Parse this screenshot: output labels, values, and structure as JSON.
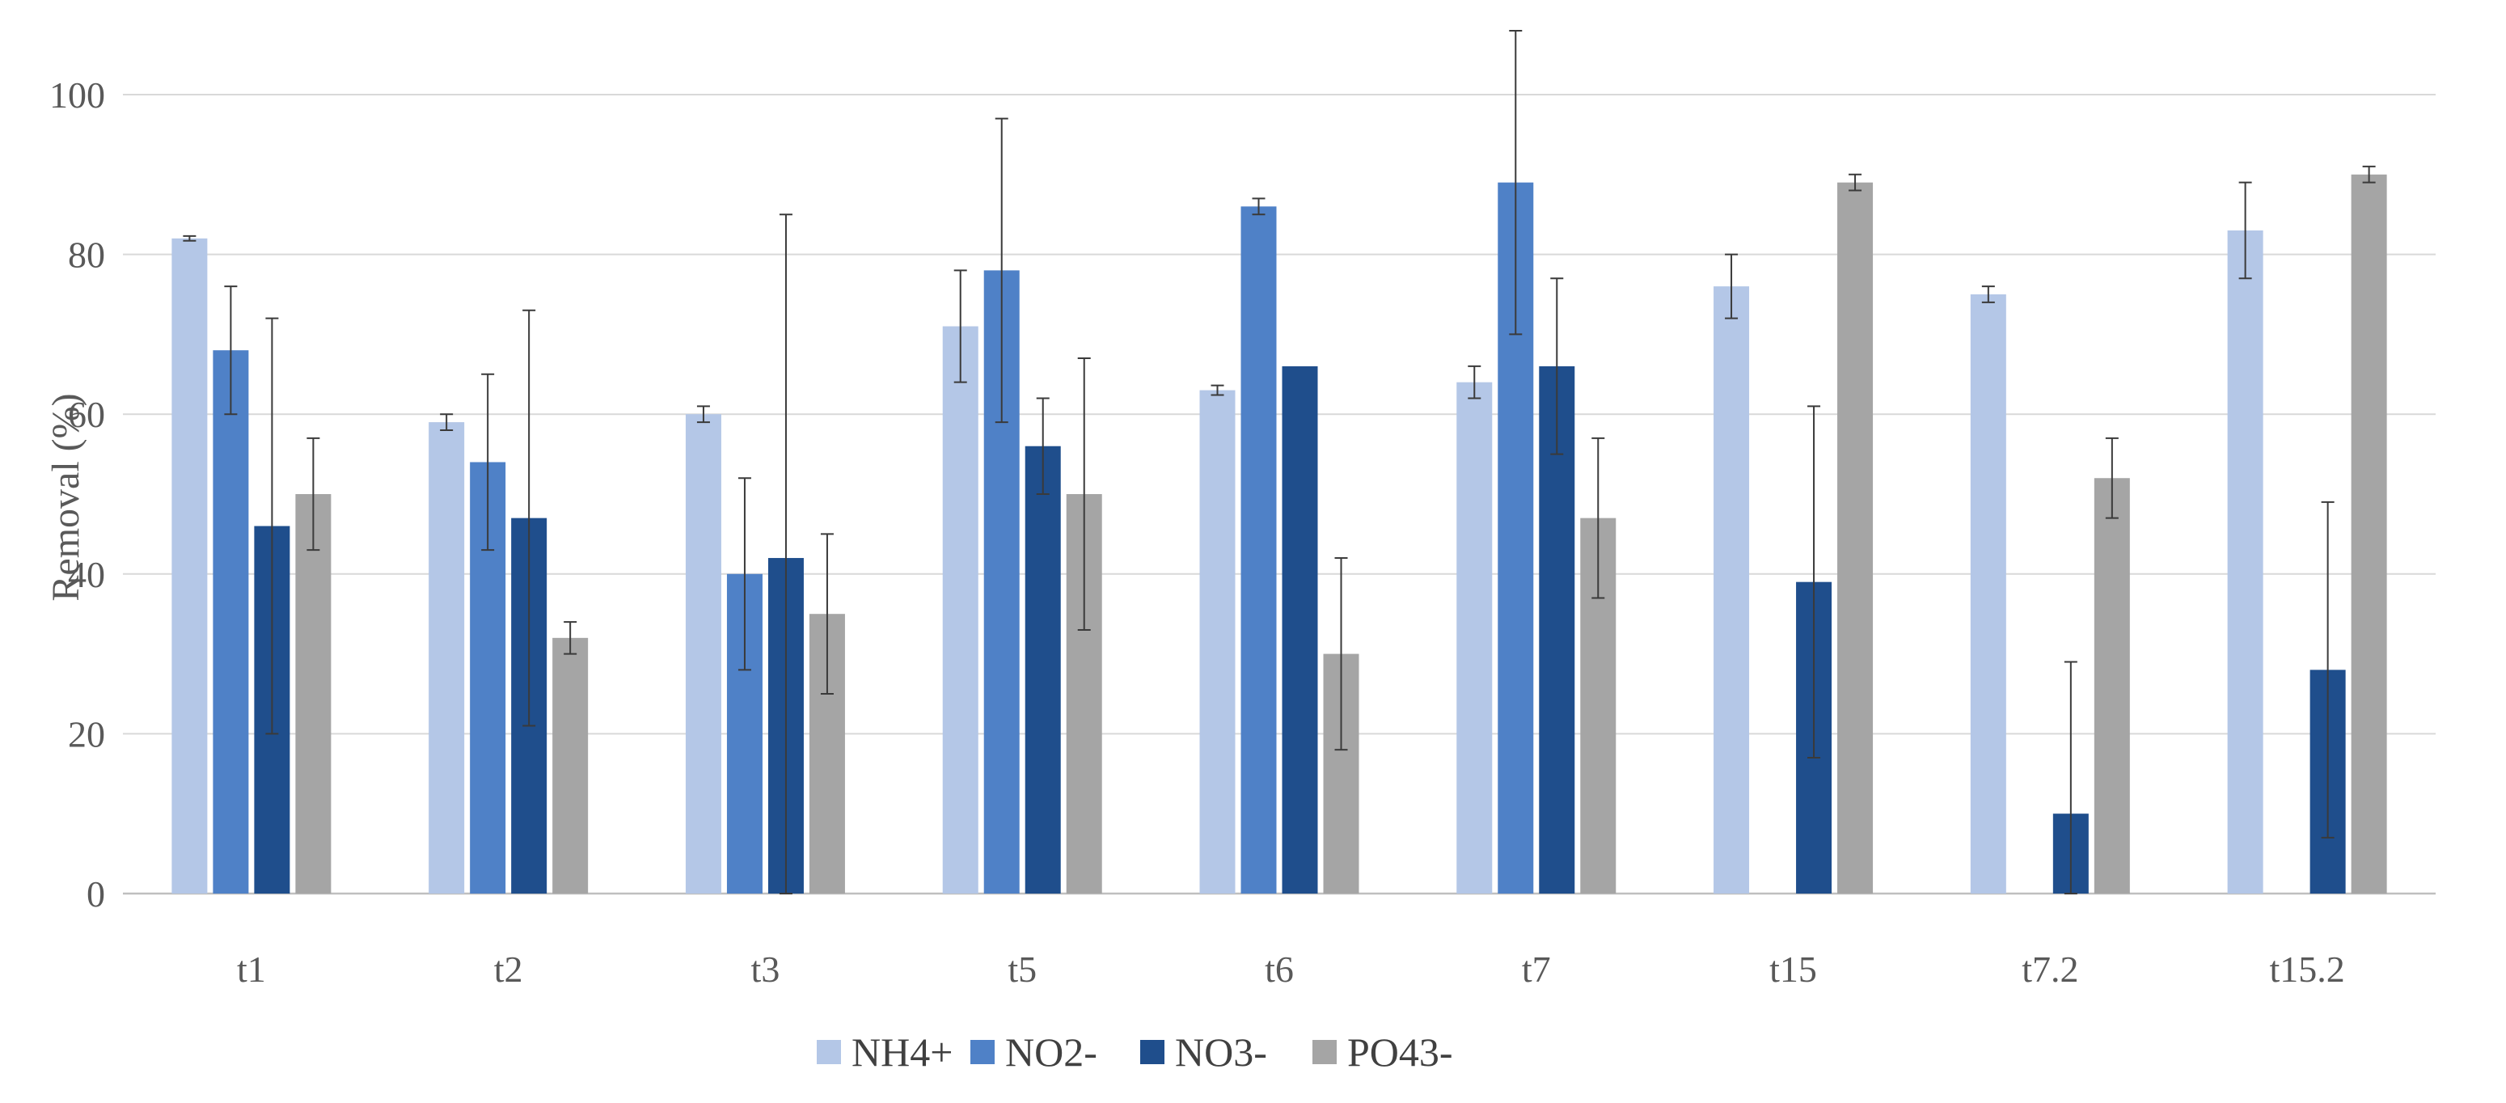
{
  "chart_data": {
    "type": "bar",
    "title": "",
    "xlabel": "",
    "ylabel": "Removal (%)",
    "ylim": [
      0,
      100
    ],
    "yticks": [
      "0",
      "20",
      "40",
      "60",
      "80",
      "100"
    ],
    "grid": true,
    "legend_position": "bottom-center",
    "categories": [
      "t1",
      "t2",
      "t3",
      "t5",
      "t6",
      "t7",
      "t15",
      "t7.2",
      "t15.2"
    ],
    "series": [
      {
        "name": "NH4+",
        "color": "#B4C7E7",
        "values": [
          82,
          59,
          60,
          71,
          63,
          64,
          76,
          75,
          83
        ],
        "errors": [
          0.3,
          1,
          1,
          7,
          0.6,
          2,
          4,
          1,
          6
        ]
      },
      {
        "name": "NO2-",
        "color": "#4F81C7",
        "values": [
          68,
          54,
          40,
          78,
          86,
          89,
          null,
          null,
          null
        ],
        "errors": [
          8,
          11,
          12,
          19,
          1,
          19,
          null,
          null,
          null
        ]
      },
      {
        "name": "NO3-",
        "color": "#1F4E8C",
        "values": [
          46,
          47,
          42,
          56,
          66,
          66,
          39,
          10,
          28
        ],
        "errors": [
          26,
          26,
          43,
          6,
          0,
          11,
          22,
          19,
          21
        ]
      },
      {
        "name": "PO43-",
        "color": "#A5A5A5",
        "values": [
          50,
          32,
          35,
          50,
          30,
          47,
          89,
          52,
          90
        ],
        "errors": [
          7,
          2,
          10,
          17,
          12,
          10,
          1,
          5,
          1
        ]
      }
    ]
  }
}
